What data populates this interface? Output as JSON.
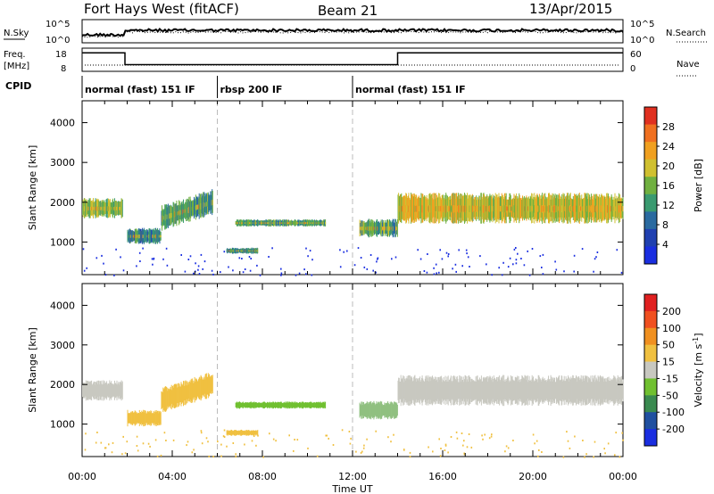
{
  "header": {
    "station": "Fort Hays West (fitACF)",
    "beam": "Beam 21",
    "date": "13/Apr/2015"
  },
  "panel_labels": {
    "noise_sky": "N.Sky",
    "noise_search": "N.Search",
    "freq": "Freq.",
    "freq_unit": "[MHz]",
    "nave": "Nave",
    "cpid": "CPID"
  },
  "noise_axis": {
    "left_ticks": [
      "10^5",
      "10^0"
    ],
    "right_ticks": [
      "10^5",
      "10^0"
    ]
  },
  "freq_axis": {
    "left_ticks": [
      "18",
      "8"
    ],
    "right_ticks": [
      "60",
      "0"
    ]
  },
  "cpid_segments": [
    {
      "label": "normal (fast) 151 IF",
      "start_h": 0,
      "end_h": 6
    },
    {
      "label": "rbsp 200 IF",
      "start_h": 6,
      "end_h": 12
    },
    {
      "label": "normal (fast) 151 IF",
      "start_h": 12,
      "end_h": 24
    }
  ],
  "chart_data": [
    {
      "type": "heatmap",
      "name": "power",
      "ylabel": "Slant Range [km]",
      "xlabel": "Time UT",
      "xlim": [
        0,
        24
      ],
      "ylim": [
        180,
        4550
      ],
      "x_ticks": [
        "00:00",
        "04:00",
        "08:00",
        "12:00",
        "16:00",
        "20:00",
        "00:00"
      ],
      "x_tick_hours": [
        0,
        4,
        8,
        12,
        16,
        20,
        24
      ],
      "y_ticks": [
        1000,
        2000,
        3000,
        4000
      ],
      "colorbar": {
        "label": "Power [dB]",
        "ticks": [
          "4",
          "8",
          "12",
          "16",
          "20",
          "24",
          "28"
        ],
        "colors": [
          "#1a2ee0",
          "#2040b0",
          "#2a6aa0",
          "#3a9a70",
          "#70b040",
          "#d0c030",
          "#f0a020",
          "#f07020",
          "#e03020"
        ]
      },
      "echo_regions": [
        {
          "t0": 0.0,
          "t1": 1.8,
          "r_center": 1850,
          "r_halfwidth": 200,
          "level": 0.45
        },
        {
          "t0": 2.0,
          "t1": 3.5,
          "r_center": 1150,
          "r_halfwidth": 160,
          "level": 0.3
        },
        {
          "t0": 3.5,
          "t1": 5.8,
          "r_center": 1600,
          "r_halfwidth": 250,
          "level": 0.35
        },
        {
          "t0": 6.8,
          "t1": 10.8,
          "r_center": 1480,
          "r_halfwidth": 70,
          "level": 0.35
        },
        {
          "t0": 6.4,
          "t1": 7.8,
          "r_center": 780,
          "r_halfwidth": 60,
          "level": 0.3
        },
        {
          "t0": 12.3,
          "t1": 14.0,
          "r_center": 1350,
          "r_halfwidth": 180,
          "level": 0.35
        },
        {
          "t0": 14.0,
          "t1": 24.0,
          "r_center": 1850,
          "r_halfwidth": 300,
          "level": 0.55
        }
      ]
    },
    {
      "type": "heatmap",
      "name": "velocity",
      "ylabel": "Slant Range [km]",
      "xlabel": "Time UT",
      "xlim": [
        0,
        24
      ],
      "ylim": [
        180,
        4550
      ],
      "x_ticks": [
        "00:00",
        "04:00",
        "08:00",
        "12:00",
        "16:00",
        "20:00",
        "00:00"
      ],
      "x_tick_hours": [
        0,
        4,
        8,
        12,
        16,
        20,
        24
      ],
      "y_ticks": [
        1000,
        2000,
        3000,
        4000
      ],
      "colorbar": {
        "label": "Velocity [m s",
        "label_sup": "-1",
        "label_end": "]",
        "ticks": [
          "200",
          "100",
          "50",
          "15",
          "-15",
          "-50",
          "-100",
          "-200"
        ],
        "colors": [
          "#1a2ee0",
          "#2050a0",
          "#3a8a50",
          "#70c030",
          "#c8c8c0",
          "#f0c040",
          "#f09020",
          "#f05020",
          "#e02020"
        ]
      },
      "echo_regions": [
        {
          "t0": 0.0,
          "t1": 1.8,
          "r_center": 1850,
          "r_halfwidth": 200,
          "color": "#c8c8c0"
        },
        {
          "t0": 2.0,
          "t1": 3.5,
          "r_center": 1150,
          "r_halfwidth": 160,
          "color": "#f0c040"
        },
        {
          "t0": 3.5,
          "t1": 5.8,
          "r_center": 1600,
          "r_halfwidth": 250,
          "color": "#f0c040"
        },
        {
          "t0": 6.8,
          "t1": 10.8,
          "r_center": 1480,
          "r_halfwidth": 70,
          "color": "#70c030"
        },
        {
          "t0": 6.4,
          "t1": 7.8,
          "r_center": 780,
          "r_halfwidth": 60,
          "color": "#f0c040"
        },
        {
          "t0": 12.3,
          "t1": 14.0,
          "r_center": 1350,
          "r_halfwidth": 180,
          "color": "#90c080"
        },
        {
          "t0": 14.0,
          "t1": 24.0,
          "r_center": 1850,
          "r_halfwidth": 300,
          "color": "#c8c8c0"
        }
      ]
    }
  ],
  "freq_series": {
    "segments": [
      {
        "t0": 0.0,
        "t1": 1.9,
        "mhz": 16.5
      },
      {
        "t0": 1.9,
        "t1": 14.0,
        "mhz": 10.5
      },
      {
        "t0": 14.0,
        "t1": 24.0,
        "mhz": 16.5
      }
    ]
  }
}
